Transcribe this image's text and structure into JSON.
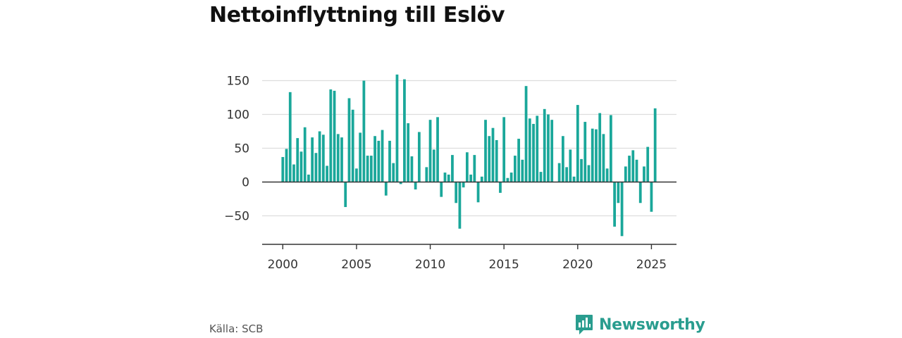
{
  "title": "Nettoinflyttning till Eslöv",
  "source": "Källa: SCB",
  "brand": {
    "name": "Newsworthy",
    "icon": "newsworthy-logo-icon"
  },
  "colors": {
    "bar": "#1aa79a",
    "grid": "#dddddd",
    "zero": "#333333",
    "axis": "#333333",
    "text": "#333333"
  },
  "chart_data": {
    "type": "bar",
    "title": "Nettoinflyttning till Eslöv",
    "xlabel": "",
    "ylabel": "",
    "ylim": [
      -92,
      160
    ],
    "xlim": [
      1998.6,
      2026.7
    ],
    "yticks": [
      -50,
      0,
      50,
      100,
      150
    ],
    "xticks": [
      2000,
      2005,
      2010,
      2015,
      2020,
      2025
    ],
    "ytick_labels": [
      "−50",
      "0",
      "50",
      "100",
      "150"
    ],
    "xtick_labels": [
      "2000",
      "2005",
      "2010",
      "2015",
      "2020",
      "2025"
    ],
    "grid": true,
    "legend": "none",
    "x_start": 2000,
    "x_step": 0.25,
    "values": [
      37,
      49,
      133,
      26,
      65,
      45,
      81,
      11,
      66,
      43,
      75,
      70,
      24,
      137,
      135,
      71,
      66,
      -37,
      124,
      107,
      20,
      73,
      150,
      39,
      39,
      68,
      61,
      77,
      -20,
      61,
      28,
      159,
      -3,
      152,
      87,
      38,
      -11,
      74,
      0,
      22,
      92,
      48,
      96,
      -22,
      14,
      11,
      40,
      -31,
      -69,
      -8,
      44,
      11,
      40,
      -30,
      8,
      92,
      68,
      80,
      62,
      -16,
      96,
      6,
      14,
      39,
      64,
      33,
      142,
      94,
      86,
      98,
      15,
      108,
      100,
      92,
      0,
      28,
      68,
      22,
      48,
      8,
      114,
      34,
      89,
      25,
      79,
      78,
      102,
      71,
      20,
      99,
      -66,
      -31,
      -80,
      23,
      39,
      47,
      33,
      -31,
      23,
      52,
      -44,
      109
    ]
  }
}
